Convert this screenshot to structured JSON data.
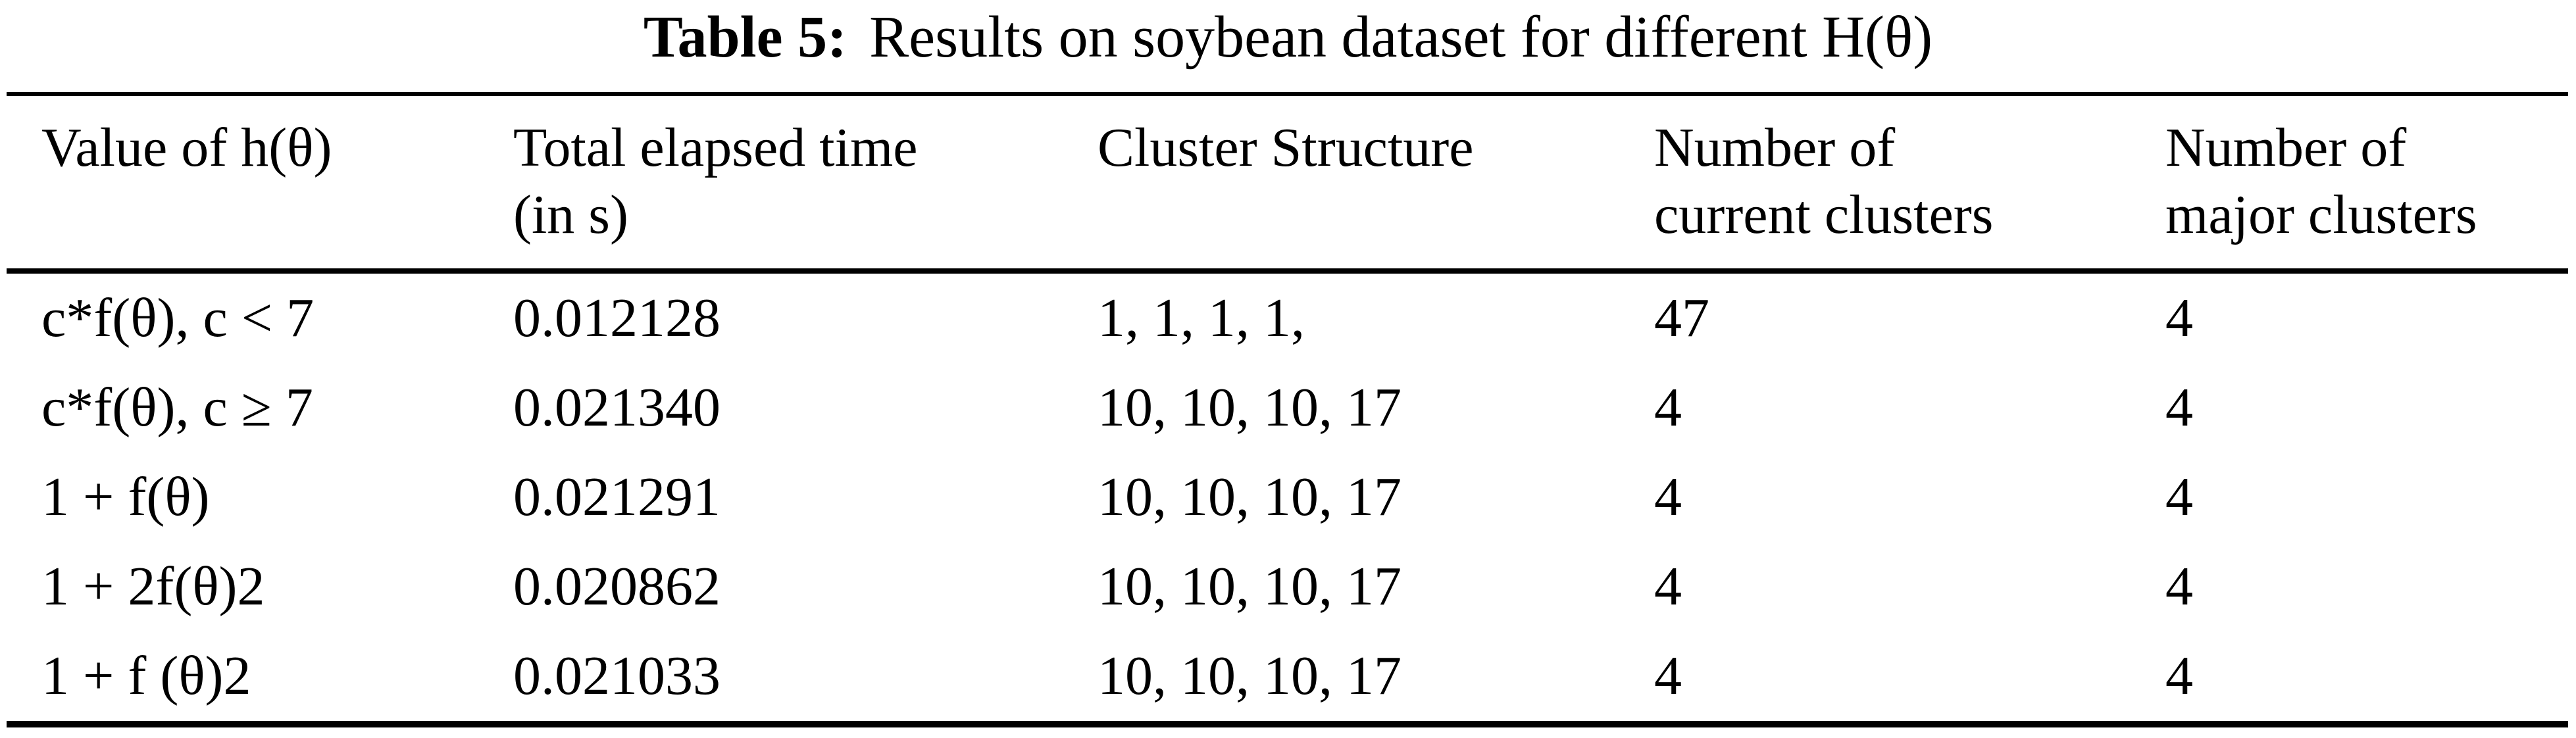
{
  "page": {
    "background": "#ffffff",
    "text_color": "#000000"
  },
  "caption": {
    "label": "Table 5:",
    "text": "Results on soybean dataset for different H(θ)"
  },
  "table": {
    "headers": [
      {
        "line1": "Value of h(θ)",
        "line2": ""
      },
      {
        "line1": "Total elapsed time",
        "line2": "(in s)"
      },
      {
        "line1": "Cluster Structure",
        "line2": ""
      },
      {
        "line1": "Number of",
        "line2": "current clusters"
      },
      {
        "line1": "Number of",
        "line2": "major clusters"
      }
    ],
    "rows": [
      {
        "cells": [
          "c*f(θ), c < 7",
          "0.012128",
          "1, 1, 1, 1,",
          "47",
          "4"
        ]
      },
      {
        "cells": [
          "c*f(θ), c ≥ 7",
          "0.021340",
          "10, 10, 10, 17",
          "4",
          "4"
        ]
      },
      {
        "cells": [
          "1 + f(θ)",
          "0.021291",
          "10, 10, 10, 17",
          "4",
          "4"
        ]
      },
      {
        "cells": [
          "1 + 2f(θ)2",
          "0.020862",
          "10, 10, 10, 17",
          "4",
          "4"
        ]
      },
      {
        "cells": [
          "1 + f (θ)2",
          "0.021033",
          "10, 10, 10, 17",
          "4",
          "4"
        ]
      }
    ]
  }
}
